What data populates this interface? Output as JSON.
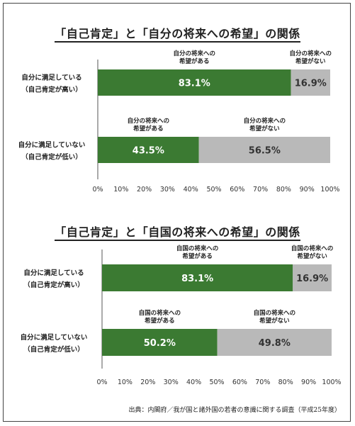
{
  "colors": {
    "positive": "#3b7a32",
    "negative": "#b9b9b9",
    "axis": "#555555"
  },
  "chart_data": [
    {
      "type": "bar",
      "orientation": "horizontal",
      "stacked": true,
      "title": "「自己肯定」と「自分の将来への希望」の関係",
      "categories": [
        "自分に満足している\n（自己肯定が高い）",
        "自分に満足していない\n（自己肯定が低い）"
      ],
      "series": [
        {
          "name": "自分の将来への\n希望がある",
          "values": [
            83.1,
            43.5
          ],
          "labels": [
            "83.1%",
            "43.5%"
          ]
        },
        {
          "name": "自分の将来への\n希望がない",
          "values": [
            16.9,
            56.5
          ],
          "labels": [
            "16.9%",
            "56.5%"
          ]
        }
      ],
      "xticks": [
        "0%",
        "10%",
        "20%",
        "30%",
        "40%",
        "50%",
        "60%",
        "70%",
        "80%",
        "90%",
        "100%"
      ],
      "xlim": [
        0,
        100
      ],
      "grid": false,
      "legend": "above each bar segment"
    },
    {
      "type": "bar",
      "orientation": "horizontal",
      "stacked": true,
      "title": "「自己肯定」と「自国の将来への希望」の関係",
      "categories": [
        "自分に満足している\n（自己肯定が高い）",
        "自分に満足していない\n（自己肯定が低い）"
      ],
      "series": [
        {
          "name": "自国の将来への\n希望がある",
          "values": [
            83.1,
            50.2
          ],
          "labels": [
            "83.1%",
            "50.2%"
          ]
        },
        {
          "name": "自国の将来への\n希望がない",
          "values": [
            16.9,
            49.8
          ],
          "labels": [
            "16.9%",
            "49.8%"
          ]
        }
      ],
      "xticks": [
        "0%",
        "10%",
        "20%",
        "30%",
        "40%",
        "50%",
        "60%",
        "70%",
        "80%",
        "90%",
        "100%"
      ],
      "xlim": [
        0,
        100
      ],
      "grid": false,
      "legend": "above each bar segment"
    }
  ],
  "source": "出典：内閣府／我が国と諸外国の若者の意識に関する調査（平成25年度）"
}
